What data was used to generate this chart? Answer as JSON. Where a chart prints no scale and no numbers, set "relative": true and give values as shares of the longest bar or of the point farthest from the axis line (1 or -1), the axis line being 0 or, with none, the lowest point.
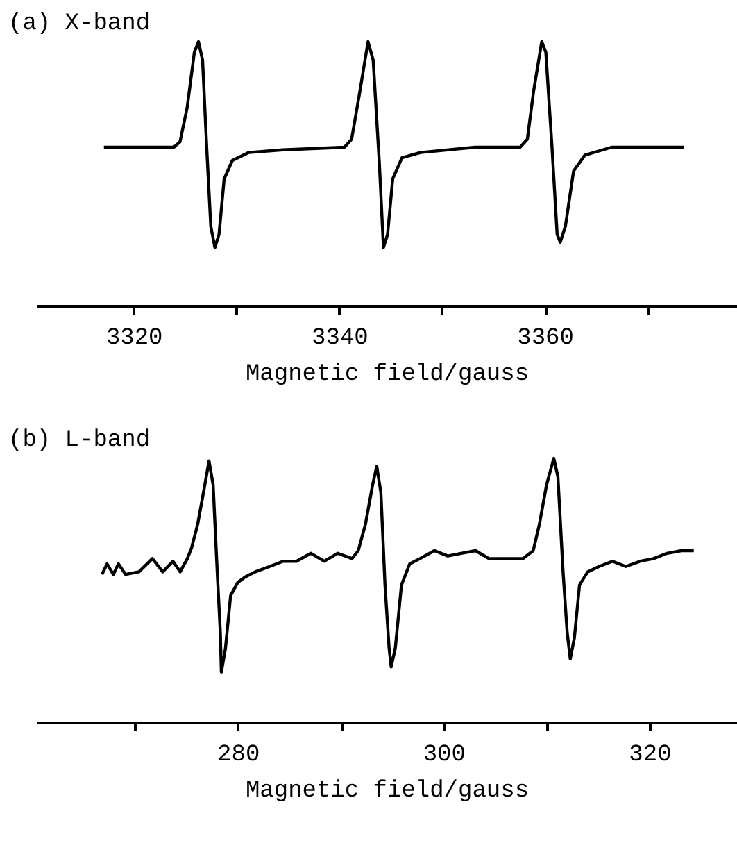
{
  "chart_data": [
    {
      "type": "line",
      "title": "(a) X-band",
      "xlabel": "Magnetic field/gauss",
      "relative": true,
      "xlim": [
        3310.5,
        3378.7
      ],
      "xticks": [
        3320,
        {
          "value": 3330,
          "label": null
        },
        3340,
        {
          "value": 3350,
          "label": null
        },
        3360,
        {
          "value": 3370,
          "label": null
        }
      ],
      "grid": false,
      "color": "#000000",
      "x": [
        3317.1,
        3323.9,
        3324.5,
        3325.2,
        3325.9,
        3326.3,
        3326.7,
        3327.1,
        3327.5,
        3327.9,
        3328.3,
        3328.8,
        3329.6,
        3331.2,
        3334.5,
        3340.5,
        3341.2,
        3342.0,
        3342.8,
        3343.3,
        3343.9,
        3344.3,
        3344.7,
        3345.2,
        3346.1,
        3347.9,
        3353.2,
        3357.6,
        3358.3,
        3358.9,
        3359.7,
        3360.1,
        3360.7,
        3361.2,
        3361.5,
        3362.0,
        3362.8,
        3363.9,
        3366.5,
        3373.5
      ],
      "values": [
        0.6,
        0.6,
        0.62,
        0.75,
        0.96,
        1.0,
        0.93,
        0.6,
        0.3,
        0.22,
        0.27,
        0.48,
        0.55,
        0.58,
        0.59,
        0.6,
        0.63,
        0.81,
        1.0,
        0.93,
        0.54,
        0.22,
        0.27,
        0.48,
        0.56,
        0.58,
        0.6,
        0.6,
        0.63,
        0.81,
        1.0,
        0.96,
        0.6,
        0.27,
        0.24,
        0.3,
        0.51,
        0.57,
        0.6,
        0.6
      ]
    },
    {
      "type": "line",
      "title": "(b) L-band",
      "xlabel": "Magnetic field/gauss",
      "relative": true,
      "xlim": [
        260.4,
        328.5
      ],
      "xticks": [
        {
          "value": 270,
          "label": null
        },
        280,
        {
          "value": 290,
          "label": null
        },
        300,
        {
          "value": 310,
          "label": null
        },
        320
      ],
      "grid": false,
      "color": "#000000",
      "x": [
        266.8,
        267.3,
        267.9,
        268.4,
        269.1,
        270.4,
        271.7,
        272.7,
        273.7,
        274.4,
        275.1,
        275.5,
        276.1,
        276.8,
        277.2,
        277.6,
        278.0,
        278.3,
        278.4,
        278.8,
        279.3,
        280.0,
        280.7,
        281.7,
        283.1,
        284.4,
        285.7,
        287.1,
        288.4,
        289.7,
        291.1,
        291.7,
        292.4,
        293.1,
        293.5,
        293.9,
        294.3,
        294.7,
        294.9,
        295.3,
        295.9,
        296.7,
        297.7,
        299.1,
        300.4,
        301.7,
        303.1,
        304.4,
        305.7,
        307.7,
        308.7,
        309.3,
        310.0,
        310.7,
        311.1,
        311.6,
        312.0,
        312.3,
        312.7,
        313.2,
        314.0,
        315.1,
        316.4,
        317.7,
        319.1,
        320.4,
        321.7,
        323.1,
        324.3
      ],
      "values": [
        0.56,
        0.6,
        0.56,
        0.6,
        0.56,
        0.57,
        0.62,
        0.57,
        0.61,
        0.57,
        0.62,
        0.66,
        0.75,
        0.9,
        0.99,
        0.9,
        0.57,
        0.34,
        0.19,
        0.28,
        0.48,
        0.53,
        0.55,
        0.57,
        0.59,
        0.61,
        0.61,
        0.64,
        0.61,
        0.64,
        0.62,
        0.65,
        0.75,
        0.9,
        0.97,
        0.87,
        0.52,
        0.28,
        0.21,
        0.28,
        0.52,
        0.6,
        0.62,
        0.65,
        0.63,
        0.64,
        0.65,
        0.62,
        0.62,
        0.62,
        0.65,
        0.75,
        0.9,
        1.0,
        0.93,
        0.57,
        0.34,
        0.24,
        0.32,
        0.52,
        0.57,
        0.59,
        0.61,
        0.59,
        0.61,
        0.62,
        0.64,
        0.65,
        0.65
      ]
    }
  ]
}
